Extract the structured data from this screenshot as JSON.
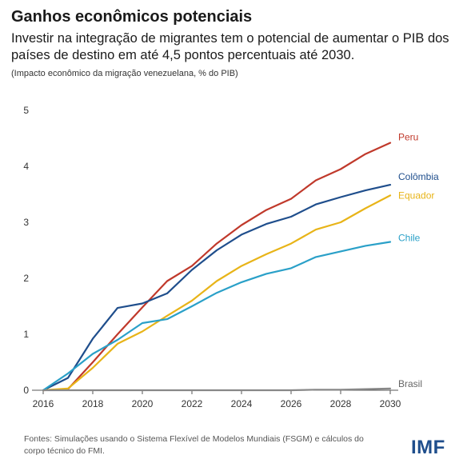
{
  "chart_data": {
    "type": "line",
    "title": "Ganhos econômicos potenciais",
    "subtitle": "Investir na integração de migrantes tem o potencial de aumentar o PIB dos países de destino em até 4,5 pontos percentuais até 2030.",
    "note": "(Impacto econômico da migração venezuelana, % do PIB)",
    "xlabel": "",
    "ylabel": "",
    "x": [
      2016,
      2017,
      2018,
      2019,
      2020,
      2021,
      2022,
      2023,
      2024,
      2025,
      2026,
      2027,
      2028,
      2029,
      2030
    ],
    "xticks": [
      "2016",
      "2018",
      "2020",
      "2022",
      "2024",
      "2026",
      "2028",
      "2030"
    ],
    "xtick_values": [
      2016,
      2018,
      2020,
      2022,
      2024,
      2026,
      2028,
      2030
    ],
    "yticks": [
      "0",
      "1",
      "2",
      "3",
      "4",
      "5"
    ],
    "ytick_values": [
      0,
      1,
      2,
      3,
      4,
      5
    ],
    "xlim": [
      2016,
      2030
    ],
    "ylim": [
      0,
      5
    ],
    "grid": false,
    "series": [
      {
        "name": "Peru",
        "color": "#c0392b",
        "values": [
          0,
          0.02,
          0.5,
          1.0,
          1.48,
          1.95,
          2.22,
          2.62,
          2.95,
          3.22,
          3.42,
          3.75,
          3.95,
          4.22,
          4.42
        ]
      },
      {
        "name": "Colômbia",
        "color": "#1f4e8c",
        "values": [
          0,
          0.22,
          0.92,
          1.47,
          1.55,
          1.73,
          2.15,
          2.5,
          2.78,
          2.97,
          3.1,
          3.32,
          3.45,
          3.57,
          3.67
        ]
      },
      {
        "name": "Equador",
        "color": "#e8b418",
        "values": [
          0,
          0.03,
          0.4,
          0.83,
          1.05,
          1.33,
          1.6,
          1.95,
          2.22,
          2.43,
          2.62,
          2.87,
          3.0,
          3.25,
          3.48
        ]
      },
      {
        "name": "Chile",
        "color": "#2aa0c8",
        "values": [
          0,
          0.3,
          0.65,
          0.9,
          1.2,
          1.27,
          1.5,
          1.74,
          1.93,
          2.08,
          2.18,
          2.38,
          2.48,
          2.58,
          2.65
        ]
      },
      {
        "name": "Brasil",
        "color": "#888888",
        "values": [
          0,
          0,
          0,
          0,
          0,
          0,
          0,
          0,
          0,
          0,
          0,
          0.01,
          0.01,
          0.02,
          0.03
        ]
      }
    ]
  },
  "footer": {
    "source": "Fontes: Simulações usando o Sistema Flexível de Modelos Mundiais (FSGM) e cálculos do corpo técnico do FMI.",
    "logo": "IMF"
  }
}
